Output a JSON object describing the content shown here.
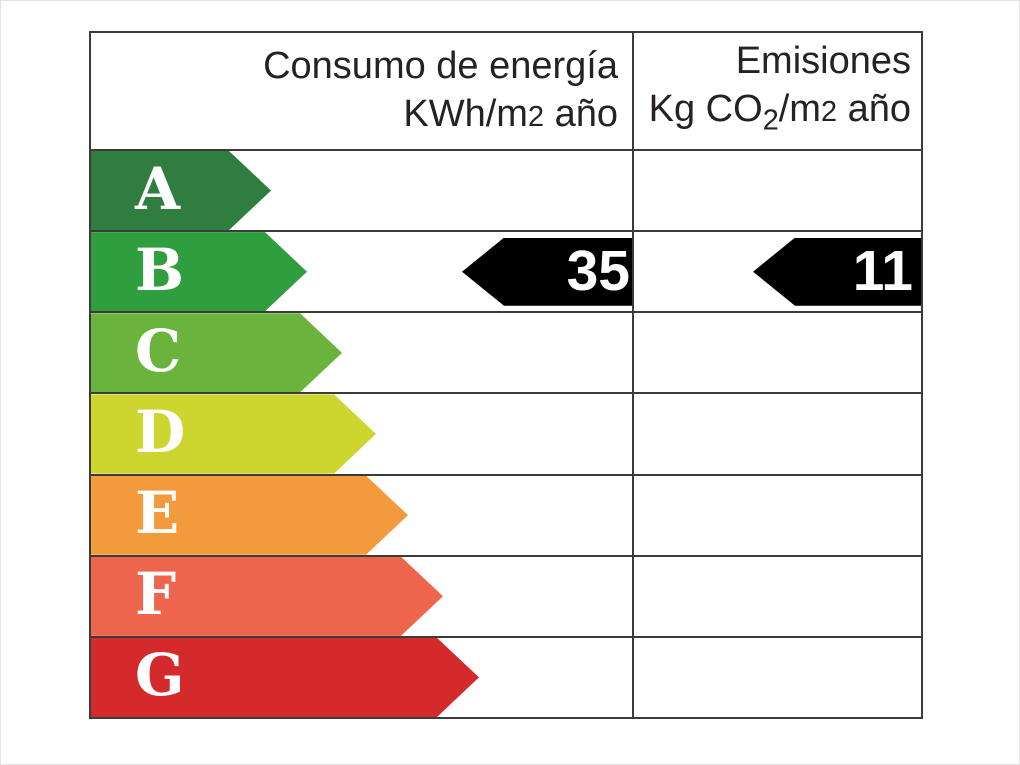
{
  "chart_data": {
    "type": "table",
    "columns": [
      "Consumo de energía KWh/m2 año",
      "Emisiones Kg CO2/m2 año"
    ],
    "categories": [
      "A",
      "B",
      "C",
      "D",
      "E",
      "F",
      "G"
    ],
    "highlighted_rating": "B",
    "values": {
      "consumo_kwh_m2_ano": 35,
      "emisiones_kg_co2_m2_ano": 11
    },
    "legend_position": "none",
    "grid": true
  },
  "header": {
    "consumption": {
      "title": "Consumo de energía",
      "unit_prefix": "KWh/m",
      "unit_exp": "2",
      "unit_suffix": " año"
    },
    "emissions": {
      "title": "Emisiones",
      "unit_prefix": "Kg CO",
      "unit_sub": "2",
      "unit_mid": "/m",
      "unit_exp": "2",
      "unit_suffix": " año"
    }
  },
  "ratings": [
    {
      "label": "A",
      "color": "#2f7d3f",
      "arrow_width": 180
    },
    {
      "label": "B",
      "color": "#2f9e3e",
      "arrow_width": 216
    },
    {
      "label": "C",
      "color": "#6ab43e",
      "arrow_width": 251
    },
    {
      "label": "D",
      "color": "#cdd62e",
      "arrow_width": 285
    },
    {
      "label": "E",
      "color": "#f29a3c",
      "arrow_width": 317
    },
    {
      "label": "F",
      "color": "#ec654c",
      "arrow_width": 352
    },
    {
      "label": "G",
      "color": "#d42a2c",
      "arrow_width": 388
    }
  ],
  "values": {
    "consumption": {
      "text": "35",
      "row": "B",
      "arrow_width": 170
    },
    "emissions": {
      "text": "11",
      "row": "B",
      "arrow_width": 168
    }
  },
  "colors": {
    "border": "#3b3b3b",
    "value_arrow": "#000000",
    "header_text": "#262223",
    "letter_text": "#ffffff"
  }
}
